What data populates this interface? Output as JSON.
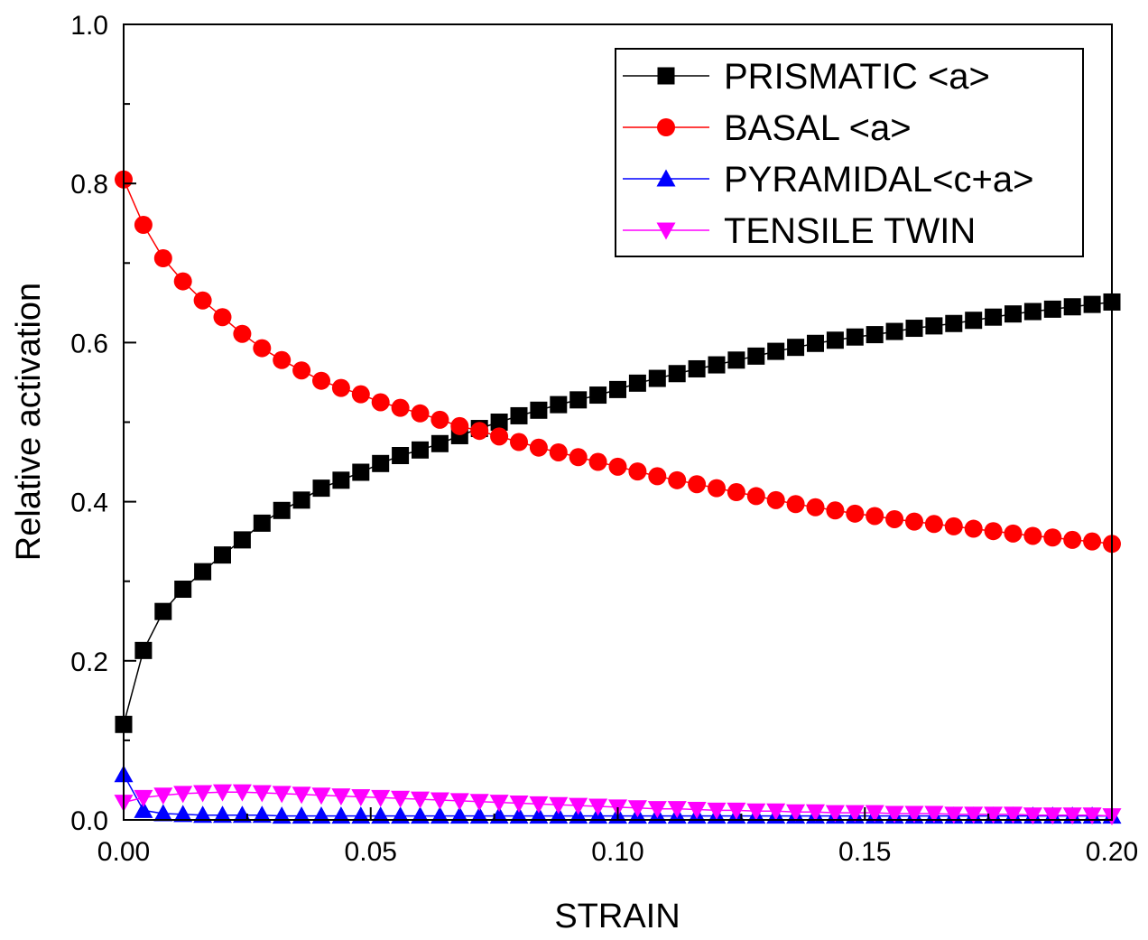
{
  "chart_data": {
    "type": "line",
    "xlabel": "STRAIN",
    "ylabel": "Relative activation",
    "xlim": [
      0.0,
      0.2
    ],
    "ylim": [
      0.0,
      1.0
    ],
    "x_ticks": [
      "0.00",
      "0.05",
      "0.10",
      "0.15",
      "0.20"
    ],
    "y_ticks": [
      "0.0",
      "0.2",
      "0.4",
      "0.6",
      "0.8",
      "1.0"
    ],
    "grid": false,
    "legend_position": "top-right",
    "series": [
      {
        "name": "PRISMATIC <a>",
        "color": "#000000",
        "marker": "square",
        "x": [
          0.0,
          0.004,
          0.008,
          0.012,
          0.016,
          0.02,
          0.024,
          0.028,
          0.032,
          0.036,
          0.04,
          0.044,
          0.048,
          0.052,
          0.056,
          0.06,
          0.064,
          0.068,
          0.072,
          0.076,
          0.08,
          0.084,
          0.088,
          0.092,
          0.096,
          0.1,
          0.104,
          0.108,
          0.112,
          0.116,
          0.12,
          0.124,
          0.128,
          0.132,
          0.136,
          0.14,
          0.144,
          0.148,
          0.152,
          0.156,
          0.16,
          0.164,
          0.168,
          0.172,
          0.176,
          0.18,
          0.184,
          0.188,
          0.192,
          0.196,
          0.2
        ],
        "values": [
          0.12,
          0.213,
          0.262,
          0.29,
          0.312,
          0.333,
          0.352,
          0.373,
          0.389,
          0.402,
          0.417,
          0.427,
          0.437,
          0.448,
          0.458,
          0.465,
          0.473,
          0.483,
          0.492,
          0.5,
          0.508,
          0.515,
          0.522,
          0.528,
          0.534,
          0.541,
          0.549,
          0.555,
          0.561,
          0.567,
          0.572,
          0.578,
          0.583,
          0.589,
          0.594,
          0.599,
          0.603,
          0.607,
          0.61,
          0.614,
          0.618,
          0.621,
          0.624,
          0.628,
          0.632,
          0.636,
          0.639,
          0.642,
          0.645,
          0.648,
          0.651
        ]
      },
      {
        "name": "BASAL <a>",
        "color": "#ff0000",
        "marker": "circle",
        "x": [
          0.0,
          0.004,
          0.008,
          0.012,
          0.016,
          0.02,
          0.024,
          0.028,
          0.032,
          0.036,
          0.04,
          0.044,
          0.048,
          0.052,
          0.056,
          0.06,
          0.064,
          0.068,
          0.072,
          0.076,
          0.08,
          0.084,
          0.088,
          0.092,
          0.096,
          0.1,
          0.104,
          0.108,
          0.112,
          0.116,
          0.12,
          0.124,
          0.128,
          0.132,
          0.136,
          0.14,
          0.144,
          0.148,
          0.152,
          0.156,
          0.16,
          0.164,
          0.168,
          0.172,
          0.176,
          0.18,
          0.184,
          0.188,
          0.192,
          0.196,
          0.2
        ],
        "values": [
          0.805,
          0.748,
          0.706,
          0.677,
          0.653,
          0.632,
          0.611,
          0.593,
          0.578,
          0.565,
          0.552,
          0.543,
          0.535,
          0.525,
          0.518,
          0.511,
          0.503,
          0.495,
          0.489,
          0.482,
          0.475,
          0.468,
          0.462,
          0.456,
          0.45,
          0.444,
          0.438,
          0.432,
          0.427,
          0.422,
          0.417,
          0.412,
          0.407,
          0.402,
          0.397,
          0.393,
          0.389,
          0.385,
          0.382,
          0.378,
          0.375,
          0.372,
          0.369,
          0.366,
          0.363,
          0.36,
          0.357,
          0.355,
          0.352,
          0.35,
          0.347
        ]
      },
      {
        "name": "PYRAMIDAL<c+a>",
        "color": "#0000ff",
        "marker": "triangle-up",
        "x": [
          0.0,
          0.004,
          0.008,
          0.012,
          0.016,
          0.02,
          0.024,
          0.028,
          0.032,
          0.036,
          0.04,
          0.044,
          0.048,
          0.052,
          0.056,
          0.06,
          0.064,
          0.068,
          0.072,
          0.076,
          0.08,
          0.084,
          0.088,
          0.092,
          0.096,
          0.1,
          0.104,
          0.108,
          0.112,
          0.116,
          0.12,
          0.124,
          0.128,
          0.132,
          0.136,
          0.14,
          0.144,
          0.148,
          0.152,
          0.156,
          0.16,
          0.164,
          0.168,
          0.172,
          0.176,
          0.18,
          0.184,
          0.188,
          0.192,
          0.196,
          0.2
        ],
        "values": [
          0.057,
          0.012,
          0.008,
          0.007,
          0.006,
          0.006,
          0.006,
          0.006,
          0.005,
          0.005,
          0.005,
          0.005,
          0.005,
          0.005,
          0.005,
          0.005,
          0.005,
          0.005,
          0.005,
          0.005,
          0.005,
          0.005,
          0.005,
          0.005,
          0.005,
          0.005,
          0.005,
          0.005,
          0.005,
          0.005,
          0.005,
          0.005,
          0.005,
          0.005,
          0.005,
          0.005,
          0.005,
          0.005,
          0.005,
          0.005,
          0.005,
          0.005,
          0.005,
          0.005,
          0.005,
          0.005,
          0.005,
          0.005,
          0.005,
          0.005,
          0.005
        ]
      },
      {
        "name": "TENSILE TWIN",
        "color": "#ff00ff",
        "marker": "triangle-down",
        "x": [
          0.0,
          0.004,
          0.008,
          0.012,
          0.016,
          0.02,
          0.024,
          0.028,
          0.032,
          0.036,
          0.04,
          0.044,
          0.048,
          0.052,
          0.056,
          0.06,
          0.064,
          0.068,
          0.072,
          0.076,
          0.08,
          0.084,
          0.088,
          0.092,
          0.096,
          0.1,
          0.104,
          0.108,
          0.112,
          0.116,
          0.12,
          0.124,
          0.128,
          0.132,
          0.136,
          0.14,
          0.144,
          0.148,
          0.152,
          0.156,
          0.16,
          0.164,
          0.168,
          0.172,
          0.176,
          0.18,
          0.184,
          0.188,
          0.192,
          0.196,
          0.2
        ],
        "values": [
          0.022,
          0.028,
          0.031,
          0.033,
          0.034,
          0.035,
          0.035,
          0.034,
          0.033,
          0.032,
          0.031,
          0.03,
          0.029,
          0.028,
          0.027,
          0.026,
          0.025,
          0.024,
          0.023,
          0.022,
          0.021,
          0.02,
          0.019,
          0.018,
          0.017,
          0.016,
          0.015,
          0.014,
          0.014,
          0.013,
          0.012,
          0.012,
          0.011,
          0.011,
          0.01,
          0.01,
          0.009,
          0.009,
          0.009,
          0.008,
          0.008,
          0.008,
          0.007,
          0.007,
          0.007,
          0.007,
          0.006,
          0.006,
          0.006,
          0.006,
          0.005
        ]
      }
    ]
  }
}
